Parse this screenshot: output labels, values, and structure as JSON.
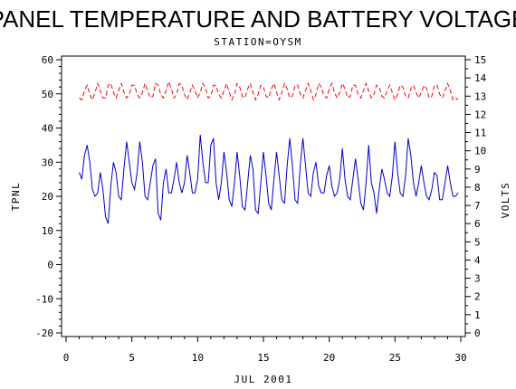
{
  "chart_data": {
    "type": "line",
    "title": "PANEL TEMPERATURE AND BATTERY VOLTAGE",
    "subtitle": "STATION=OYSM",
    "xlabel": "JUL 2001",
    "ylabel_left": "TPNL",
    "ylabel_right": "VOLTS",
    "xlim": [
      0,
      30
    ],
    "ylim_left": [
      -20,
      60
    ],
    "ylim_right": [
      0,
      15
    ],
    "x_ticks": [
      0,
      5,
      10,
      15,
      20,
      25,
      30
    ],
    "y_left_ticks": [
      -20,
      -10,
      0,
      10,
      20,
      30,
      40,
      50,
      60
    ],
    "y_right_ticks": [
      0,
      1,
      2,
      3,
      4,
      5,
      6,
      7,
      8,
      9,
      10,
      11,
      12,
      13,
      14,
      15
    ],
    "grid": false,
    "colors": {
      "temperature": "#0000cc",
      "voltage": "#ff0000",
      "axes": "#000000"
    },
    "series": [
      {
        "axis": "left",
        "style": "solid",
        "x": [
          1.0,
          1.2,
          1.4,
          1.6,
          1.8,
          2.0,
          2.2,
          2.4,
          2.6,
          2.8,
          3.0,
          3.2,
          3.4,
          3.6,
          3.8,
          4.0,
          4.2,
          4.4,
          4.6,
          4.8,
          5.0,
          5.2,
          5.4,
          5.6,
          5.8,
          6.0,
          6.2,
          6.4,
          6.6,
          6.8,
          7.0,
          7.2,
          7.4,
          7.6,
          7.8,
          8.0,
          8.2,
          8.4,
          8.6,
          8.8,
          9.0,
          9.2,
          9.4,
          9.6,
          9.8,
          10.0,
          10.2,
          10.4,
          10.6,
          10.8,
          11.0,
          11.2,
          11.4,
          11.6,
          11.8,
          12.0,
          12.2,
          12.4,
          12.6,
          12.8,
          13.0,
          13.2,
          13.4,
          13.6,
          13.8,
          14.0,
          14.2,
          14.4,
          14.6,
          14.8,
          15.0,
          15.2,
          15.4,
          15.6,
          15.8,
          16.0,
          16.2,
          16.4,
          16.6,
          16.8,
          17.0,
          17.2,
          17.4,
          17.6,
          17.8,
          18.0,
          18.2,
          18.4,
          18.6,
          18.8,
          19.0,
          19.2,
          19.4,
          19.6,
          19.8,
          20.0,
          20.2,
          20.4,
          20.6,
          20.8,
          21.0,
          21.2,
          21.4,
          21.6,
          21.8,
          22.0,
          22.2,
          22.4,
          22.6,
          22.8,
          23.0,
          23.2,
          23.4,
          23.6,
          23.8,
          24.0,
          24.2,
          24.4,
          24.6,
          24.8,
          25.0,
          25.2,
          25.4,
          25.6,
          25.8,
          26.0,
          26.2,
          26.4,
          26.6,
          26.8,
          27.0,
          27.2,
          27.4,
          27.6,
          27.8,
          28.0,
          28.2,
          28.4,
          28.6,
          28.8,
          29.0,
          29.2,
          29.4,
          29.6,
          29.8
        ],
        "y": [
          27,
          25,
          32,
          35,
          30,
          22,
          20,
          21,
          27,
          22,
          14,
          12,
          23,
          30,
          27,
          20,
          19,
          28,
          36,
          30,
          24,
          22,
          27,
          36,
          30,
          20,
          19,
          24,
          29,
          31,
          15,
          13,
          24,
          28,
          21,
          21,
          25,
          30,
          24,
          21,
          24,
          32,
          27,
          21,
          21,
          25,
          38,
          30,
          24,
          24,
          35,
          37,
          24,
          19,
          24,
          33,
          27,
          19,
          17,
          24,
          33,
          26,
          17,
          16,
          24,
          32,
          28,
          16,
          15,
          24,
          33,
          26,
          18,
          16,
          25,
          33,
          26,
          19,
          18,
          29,
          37,
          29,
          19,
          18,
          29,
          37,
          29,
          21,
          20,
          27,
          30,
          23,
          21,
          21,
          26,
          29,
          23,
          20,
          21,
          25,
          34,
          25,
          20,
          19,
          25,
          31,
          25,
          18,
          16,
          24,
          35,
          24,
          21,
          15,
          22,
          28,
          25,
          21,
          20,
          26,
          36,
          27,
          21,
          20,
          26,
          37,
          32,
          24,
          20,
          24,
          29,
          24,
          20,
          19,
          22,
          27,
          26,
          19,
          19,
          24,
          29,
          24,
          20,
          20,
          21
        ]
      },
      {
        "axis": "right",
        "style": "dashed",
        "x": [
          1.0,
          1.2,
          1.4,
          1.6,
          1.8,
          2.0,
          2.2,
          2.4,
          2.6,
          2.8,
          3.0,
          3.2,
          3.4,
          3.6,
          3.8,
          4.0,
          4.2,
          4.4,
          4.6,
          4.8,
          5.0,
          5.2,
          5.4,
          5.6,
          5.8,
          6.0,
          6.2,
          6.4,
          6.6,
          6.8,
          7.0,
          7.2,
          7.4,
          7.6,
          7.8,
          8.0,
          8.2,
          8.4,
          8.6,
          8.8,
          9.0,
          9.2,
          9.4,
          9.6,
          9.8,
          10.0,
          10.2,
          10.4,
          10.6,
          10.8,
          11.0,
          11.2,
          11.4,
          11.6,
          11.8,
          12.0,
          12.2,
          12.4,
          12.6,
          12.8,
          13.0,
          13.2,
          13.4,
          13.6,
          13.8,
          14.0,
          14.2,
          14.4,
          14.6,
          14.8,
          15.0,
          15.2,
          15.4,
          15.6,
          15.8,
          16.0,
          16.2,
          16.4,
          16.6,
          16.8,
          17.0,
          17.2,
          17.4,
          17.6,
          17.8,
          18.0,
          18.2,
          18.4,
          18.6,
          18.8,
          19.0,
          19.2,
          19.4,
          19.6,
          19.8,
          20.0,
          20.2,
          20.4,
          20.6,
          20.8,
          21.0,
          21.2,
          21.4,
          21.6,
          21.8,
          22.0,
          22.2,
          22.4,
          22.6,
          22.8,
          23.0,
          23.2,
          23.4,
          23.6,
          23.8,
          24.0,
          24.2,
          24.4,
          24.6,
          24.8,
          25.0,
          25.2,
          25.4,
          25.6,
          25.8,
          26.0,
          26.2,
          26.4,
          26.6,
          26.8,
          27.0,
          27.2,
          27.4,
          27.6,
          27.8,
          28.0,
          28.2,
          28.4,
          28.6,
          28.8,
          29.0,
          29.2,
          29.4,
          29.6,
          29.8
        ],
        "y": [
          12.9,
          12.8,
          13.3,
          13.6,
          13.1,
          12.8,
          13.2,
          13.7,
          13.3,
          12.9,
          12.9,
          13.6,
          13.7,
          13.2,
          12.9,
          13.3,
          13.7,
          13.2,
          12.9,
          13.1,
          13.6,
          13.6,
          13.1,
          12.9,
          13.2,
          13.7,
          13.3,
          12.9,
          13.0,
          13.7,
          13.6,
          13.1,
          12.9,
          13.3,
          13.8,
          13.4,
          12.9,
          13.1,
          13.7,
          13.6,
          13.1,
          12.8,
          13.2,
          13.6,
          13.3,
          12.9,
          13.2,
          13.7,
          13.4,
          12.9,
          13.0,
          13.6,
          13.6,
          13.1,
          12.9,
          13.3,
          13.7,
          13.2,
          12.8,
          13.1,
          13.7,
          13.5,
          13.0,
          12.9,
          13.4,
          13.7,
          13.2,
          12.8,
          13.1,
          13.6,
          13.5,
          13.0,
          12.9,
          13.4,
          13.7,
          13.2,
          12.8,
          13.2,
          13.7,
          13.4,
          12.9,
          13.0,
          13.6,
          13.6,
          13.1,
          12.9,
          13.3,
          13.7,
          13.3,
          12.8,
          13.1,
          13.7,
          13.5,
          13.0,
          12.9,
          13.4,
          13.7,
          13.2,
          12.9,
          13.2,
          13.7,
          13.4,
          12.9,
          13.0,
          13.6,
          13.6,
          13.1,
          12.9,
          13.3,
          13.7,
          13.3,
          12.9,
          13.1,
          13.6,
          13.5,
          13.0,
          12.9,
          13.3,
          13.6,
          13.2,
          12.8,
          13.1,
          13.6,
          13.5,
          13.0,
          12.9,
          13.4,
          13.6,
          13.2,
          12.9,
          13.2,
          13.6,
          13.4,
          12.9,
          13.0,
          13.6,
          13.6,
          13.1,
          12.9,
          13.3,
          13.7,
          13.3,
          12.8,
          12.9,
          12.8
        ]
      }
    ]
  }
}
